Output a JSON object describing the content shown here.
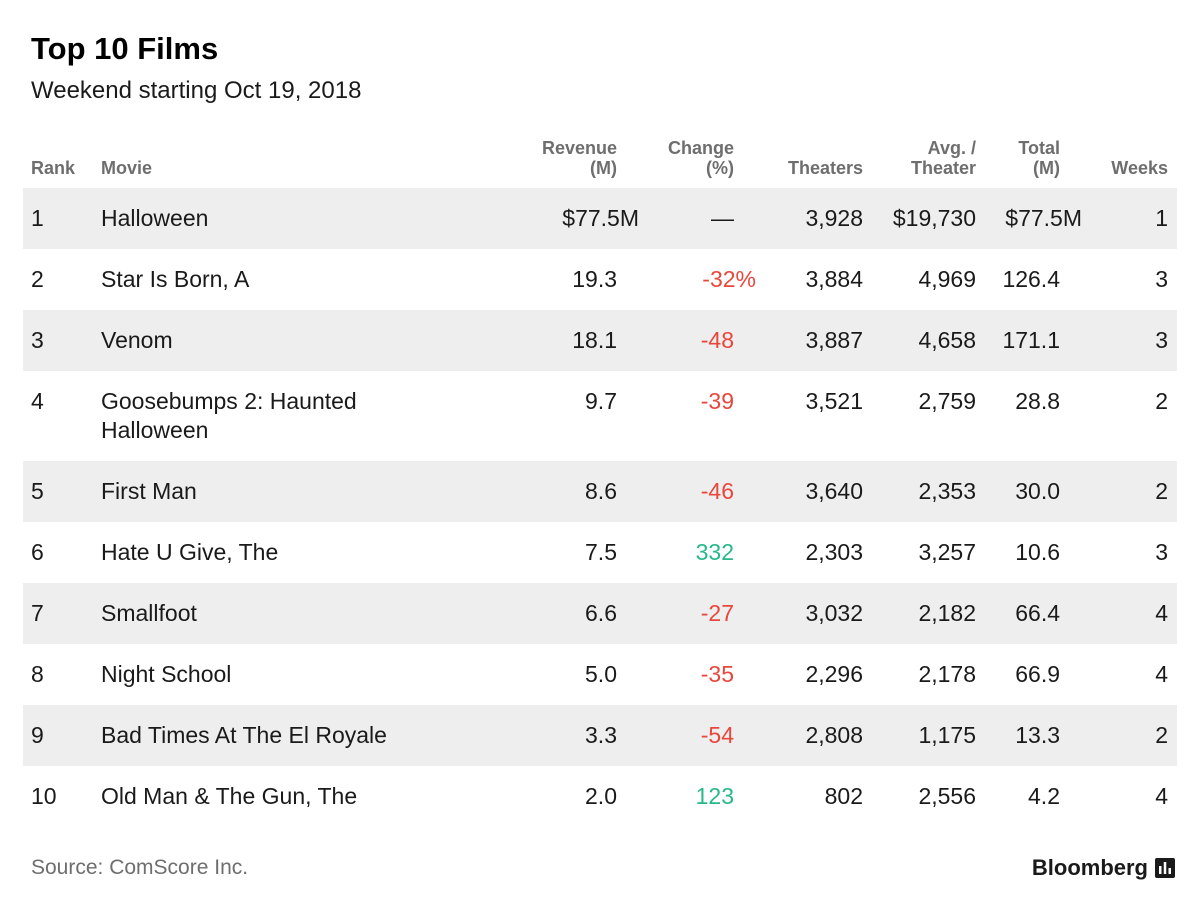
{
  "title": "Top 10 Films",
  "subtitle": "Weekend starting Oct 19, 2018",
  "headers": {
    "rank": "Rank",
    "movie": "Movie",
    "revenue": "Revenue\n(M)",
    "change": "Change\n(%)",
    "theaters": "Theaters",
    "avg": "Avg. /\nTheater",
    "total": "Total\n(M)",
    "weeks": "Weeks"
  },
  "source": "Source: ComScore Inc.",
  "brand": "Bloomberg",
  "colors": {
    "negative": "#e8473c",
    "positive": "#27b88a",
    "row_shade": "#eeeeee",
    "header_text": "#6e6e6e"
  },
  "chart_data": {
    "type": "table",
    "title": "Top 10 Films",
    "subtitle": "Weekend starting Oct 19, 2018",
    "columns": [
      "Rank",
      "Movie",
      "Revenue (M)",
      "Change (%)",
      "Theaters",
      "Avg. / Theater",
      "Total (M)",
      "Weeks"
    ],
    "rows": [
      {
        "rank": "1",
        "movie": "Halloween",
        "revenue": "$77.5M",
        "change": "—",
        "change_sign": "none",
        "theaters": "3,928",
        "avg": "$19,730",
        "total": "$77.5M",
        "weeks": "1"
      },
      {
        "rank": "2",
        "movie": "Star Is Born, A",
        "revenue": "19.3",
        "change": "-32%",
        "change_sign": "neg",
        "theaters": "3,884",
        "avg": "4,969",
        "total": "126.4",
        "weeks": "3"
      },
      {
        "rank": "3",
        "movie": "Venom",
        "revenue": "18.1",
        "change": "-48",
        "change_sign": "neg",
        "theaters": "3,887",
        "avg": "4,658",
        "total": "171.1",
        "weeks": "3"
      },
      {
        "rank": "4",
        "movie": "Goosebumps 2: Haunted Halloween",
        "revenue": "9.7",
        "change": "-39",
        "change_sign": "neg",
        "theaters": "3,521",
        "avg": "2,759",
        "total": "28.8",
        "weeks": "2"
      },
      {
        "rank": "5",
        "movie": "First Man",
        "revenue": "8.6",
        "change": "-46",
        "change_sign": "neg",
        "theaters": "3,640",
        "avg": "2,353",
        "total": "30.0",
        "weeks": "2"
      },
      {
        "rank": "6",
        "movie": "Hate U Give, The",
        "revenue": "7.5",
        "change": "332",
        "change_sign": "pos",
        "theaters": "2,303",
        "avg": "3,257",
        "total": "10.6",
        "weeks": "3"
      },
      {
        "rank": "7",
        "movie": "Smallfoot",
        "revenue": "6.6",
        "change": "-27",
        "change_sign": "neg",
        "theaters": "3,032",
        "avg": "2,182",
        "total": "66.4",
        "weeks": "4"
      },
      {
        "rank": "8",
        "movie": "Night School",
        "revenue": "5.0",
        "change": "-35",
        "change_sign": "neg",
        "theaters": "2,296",
        "avg": "2,178",
        "total": "66.9",
        "weeks": "4"
      },
      {
        "rank": "9",
        "movie": "Bad Times At The El Royale",
        "revenue": "3.3",
        "change": "-54",
        "change_sign": "neg",
        "theaters": "2,808",
        "avg": "1,175",
        "total": "13.3",
        "weeks": "2"
      },
      {
        "rank": "10",
        "movie": "Old Man & The Gun, The",
        "revenue": "2.0",
        "change": "123",
        "change_sign": "pos",
        "theaters": "802",
        "avg": "2,556",
        "total": "4.2",
        "weeks": "4"
      }
    ]
  }
}
